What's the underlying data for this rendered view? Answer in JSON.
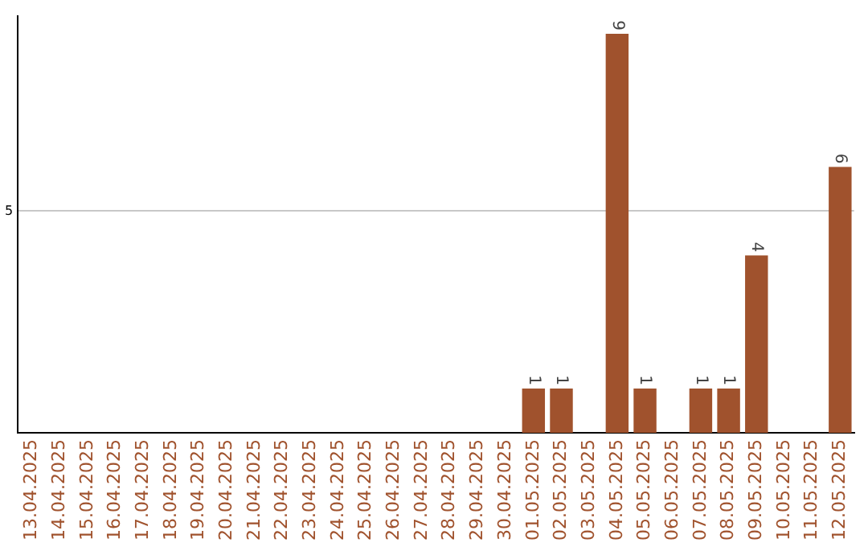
{
  "chart_data": {
    "type": "bar",
    "categories": [
      "13.04.2025",
      "14.04.2025",
      "15.04.2025",
      "16.04.2025",
      "17.04.2025",
      "18.04.2025",
      "19.04.2025",
      "20.04.2025",
      "21.04.2025",
      "22.04.2025",
      "23.04.2025",
      "24.04.2025",
      "25.04.2025",
      "26.04.2025",
      "27.04.2025",
      "28.04.2025",
      "29.04.2025",
      "30.04.2025",
      "01.05.2025",
      "02.05.2025",
      "03.05.2025",
      "04.05.2025",
      "05.05.2025",
      "06.05.2025",
      "07.05.2025",
      "08.05.2025",
      "09.05.2025",
      "10.05.2025",
      "11.05.2025",
      "12.05.2025"
    ],
    "values": [
      null,
      null,
      null,
      null,
      null,
      null,
      null,
      null,
      null,
      null,
      null,
      null,
      null,
      null,
      null,
      null,
      null,
      null,
      1,
      1,
      null,
      9,
      1,
      null,
      1,
      1,
      4,
      null,
      null,
      6
    ],
    "data_labels": true,
    "color": "#a0522d",
    "ylim": [
      0,
      9.4
    ],
    "yticks": [
      5
    ],
    "grid": "y",
    "legend": false
  }
}
